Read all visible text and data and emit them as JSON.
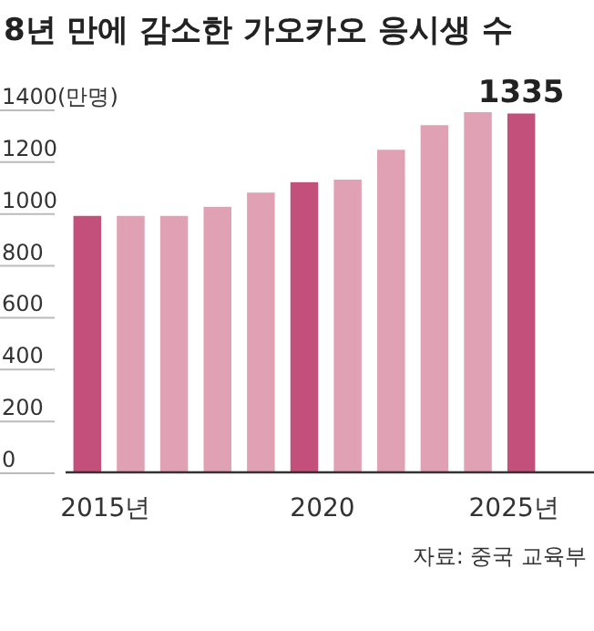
{
  "chart_data": {
    "type": "bar",
    "title": "8년 만에 감소한 가오카오 응시생 수",
    "categories": [
      "2015년",
      null,
      null,
      null,
      null,
      "2020",
      null,
      null,
      null,
      null,
      "2025년"
    ],
    "values": [
      940,
      940,
      940,
      975,
      1030,
      1070,
      1080,
      1195,
      1290,
      1340,
      1335
    ],
    "colors": [
      "#c2507a",
      "#dfa1b3",
      "#dfa1b3",
      "#dfa1b3",
      "#dfa1b3",
      "#c2507a",
      "#dfa1b3",
      "#dfa1b3",
      "#dfa1b3",
      "#dfa1b3",
      "#c2507a"
    ],
    "value_labels": [
      null,
      null,
      null,
      null,
      null,
      null,
      null,
      null,
      null,
      null,
      "1335"
    ],
    "ylim": [
      0,
      1400
    ],
    "yticks": [
      0,
      200,
      400,
      600,
      800,
      1000,
      1200,
      {
        "value": 1400,
        "label": "1400(만명)"
      }
    ],
    "annotations": [
      "자료: 중국 교육부"
    ]
  }
}
